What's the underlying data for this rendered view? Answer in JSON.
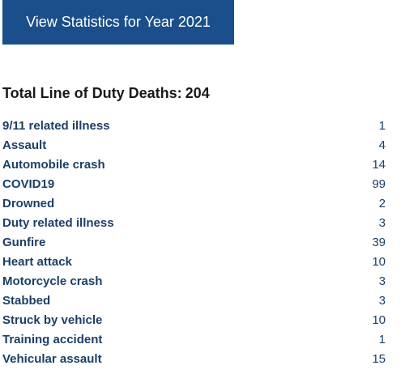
{
  "button": {
    "label": "View Statistics for Year 2021"
  },
  "summary": {
    "label": "Total Line of Duty Deaths:",
    "total": "204"
  },
  "causes": [
    {
      "label": "9/11 related illness",
      "count": "1"
    },
    {
      "label": "Assault",
      "count": "4"
    },
    {
      "label": "Automobile crash",
      "count": "14"
    },
    {
      "label": "COVID19",
      "count": "99"
    },
    {
      "label": "Drowned",
      "count": "2"
    },
    {
      "label": "Duty related illness",
      "count": "3"
    },
    {
      "label": "Gunfire",
      "count": "39"
    },
    {
      "label": "Heart attack",
      "count": "10"
    },
    {
      "label": "Motorcycle crash",
      "count": "3"
    },
    {
      "label": "Stabbed",
      "count": "3"
    },
    {
      "label": "Struck by vehicle",
      "count": "10"
    },
    {
      "label": "Training accident",
      "count": "1"
    },
    {
      "label": "Vehicular assault",
      "count": "15"
    }
  ],
  "colors": {
    "button_bg": "#1a4f8b",
    "link_text": "#1c3f66"
  }
}
